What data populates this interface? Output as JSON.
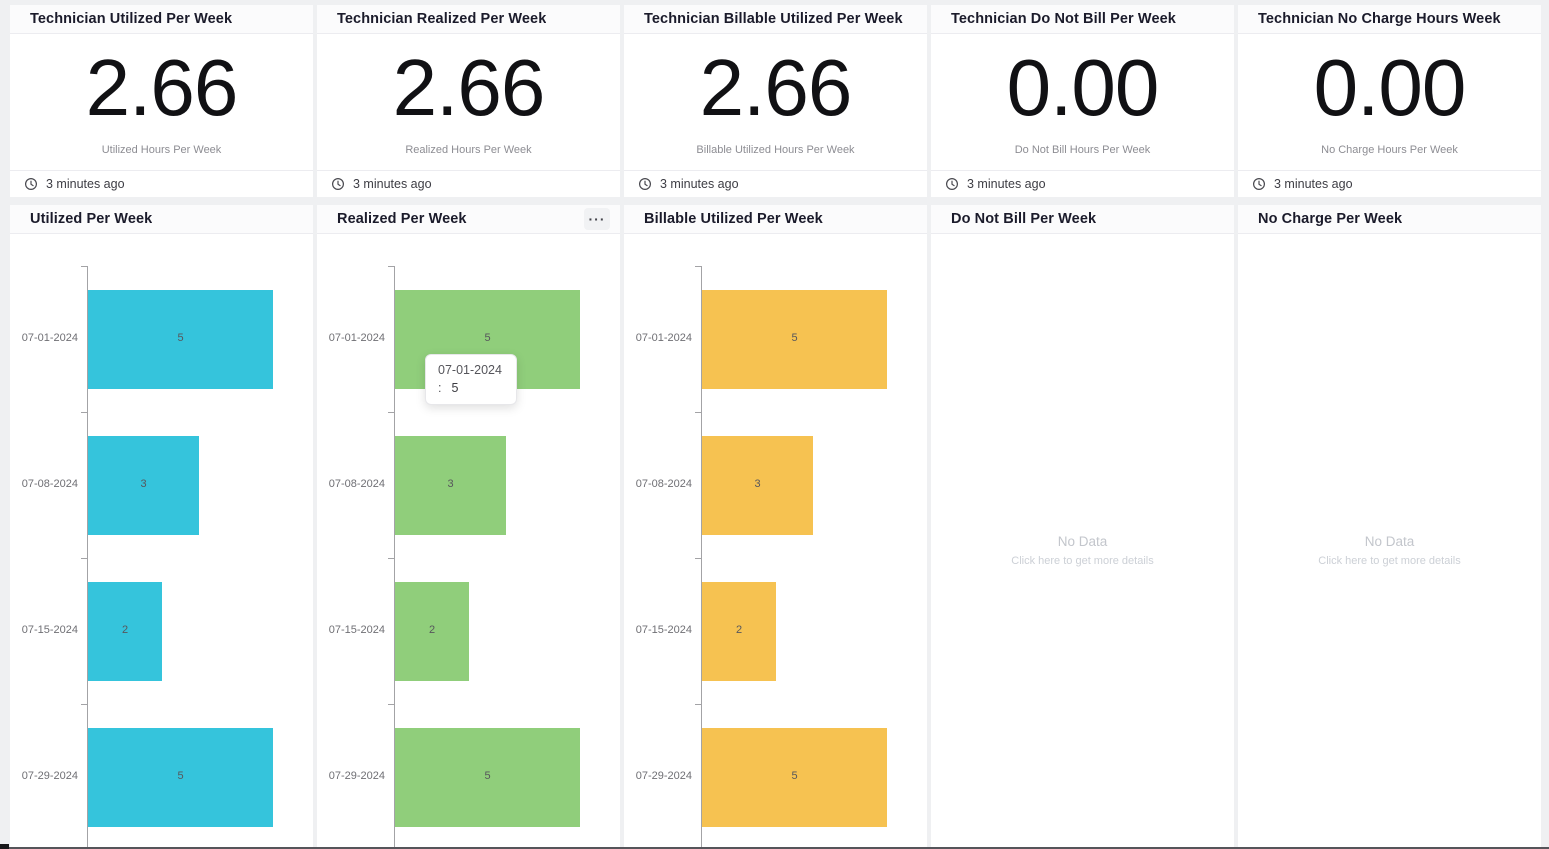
{
  "page": {
    "background": "#eff0f2"
  },
  "stat_cards": [
    {
      "title": "Technician Utilized Per Week",
      "value": "2.66",
      "caption": "Utilized Hours Per Week",
      "updated": "3 minutes ago"
    },
    {
      "title": "Technician Realized Per Week",
      "value": "2.66",
      "caption": "Realized Hours Per Week",
      "updated": "3 minutes ago"
    },
    {
      "title": "Technician Billable Utilized Per Week",
      "value": "2.66",
      "caption": "Billable Utilized Hours Per Week",
      "updated": "3 minutes ago"
    },
    {
      "title": "Technician Do Not Bill Per Week",
      "value": "0.00",
      "caption": "Do Not Bill Hours Per Week",
      "updated": "3 minutes ago"
    },
    {
      "title": "Technician No Charge Hours Week",
      "value": "0.00",
      "caption": "No Charge Hours Per Week",
      "updated": "3 minutes ago"
    }
  ],
  "chart_cards": [
    {
      "title": "Utilized Per Week"
    },
    {
      "title": "Realized Per Week",
      "menu_label": "···",
      "tooltip": {
        "line1": "07-01-2024",
        "prefix": ":",
        "value": "5"
      }
    },
    {
      "title": "Billable Utilized Per Week"
    },
    {
      "title": "Do Not Bill Per Week",
      "no_data": "No Data",
      "no_data_hint": "Click here to get more details"
    },
    {
      "title": "No Charge Per Week",
      "no_data": "No Data",
      "no_data_hint": "Click here to get more details"
    }
  ],
  "chart_data": [
    {
      "type": "bar",
      "orientation": "horizontal",
      "title": "Utilized Per Week",
      "categories": [
        "07-01-2024",
        "07-08-2024",
        "07-15-2024",
        "07-29-2024"
      ],
      "values": [
        5,
        3,
        2,
        5
      ],
      "bar_color": "#35c4dc",
      "xlim": [
        0,
        5
      ],
      "value_labels": true,
      "grid": false,
      "legend": "none"
    },
    {
      "type": "bar",
      "orientation": "horizontal",
      "title": "Realized Per Week",
      "categories": [
        "07-01-2024",
        "07-08-2024",
        "07-15-2024",
        "07-29-2024"
      ],
      "values": [
        5,
        3,
        2,
        5
      ],
      "bar_color": "#90ce7b",
      "xlim": [
        0,
        5
      ],
      "value_labels": true,
      "grid": false,
      "legend": "none"
    },
    {
      "type": "bar",
      "orientation": "horizontal",
      "title": "Billable Utilized Per Week",
      "categories": [
        "07-01-2024",
        "07-08-2024",
        "07-15-2024",
        "07-29-2024"
      ],
      "values": [
        5,
        3,
        2,
        5
      ],
      "bar_color": "#f6c251",
      "xlim": [
        0,
        5
      ],
      "value_labels": true,
      "grid": false,
      "legend": "none"
    },
    {
      "type": "bar",
      "orientation": "horizontal",
      "title": "Do Not Bill Per Week",
      "categories": [],
      "values": [],
      "no_data": true
    },
    {
      "type": "bar",
      "orientation": "horizontal",
      "title": "No Charge Per Week",
      "categories": [],
      "values": [],
      "no_data": true
    }
  ]
}
